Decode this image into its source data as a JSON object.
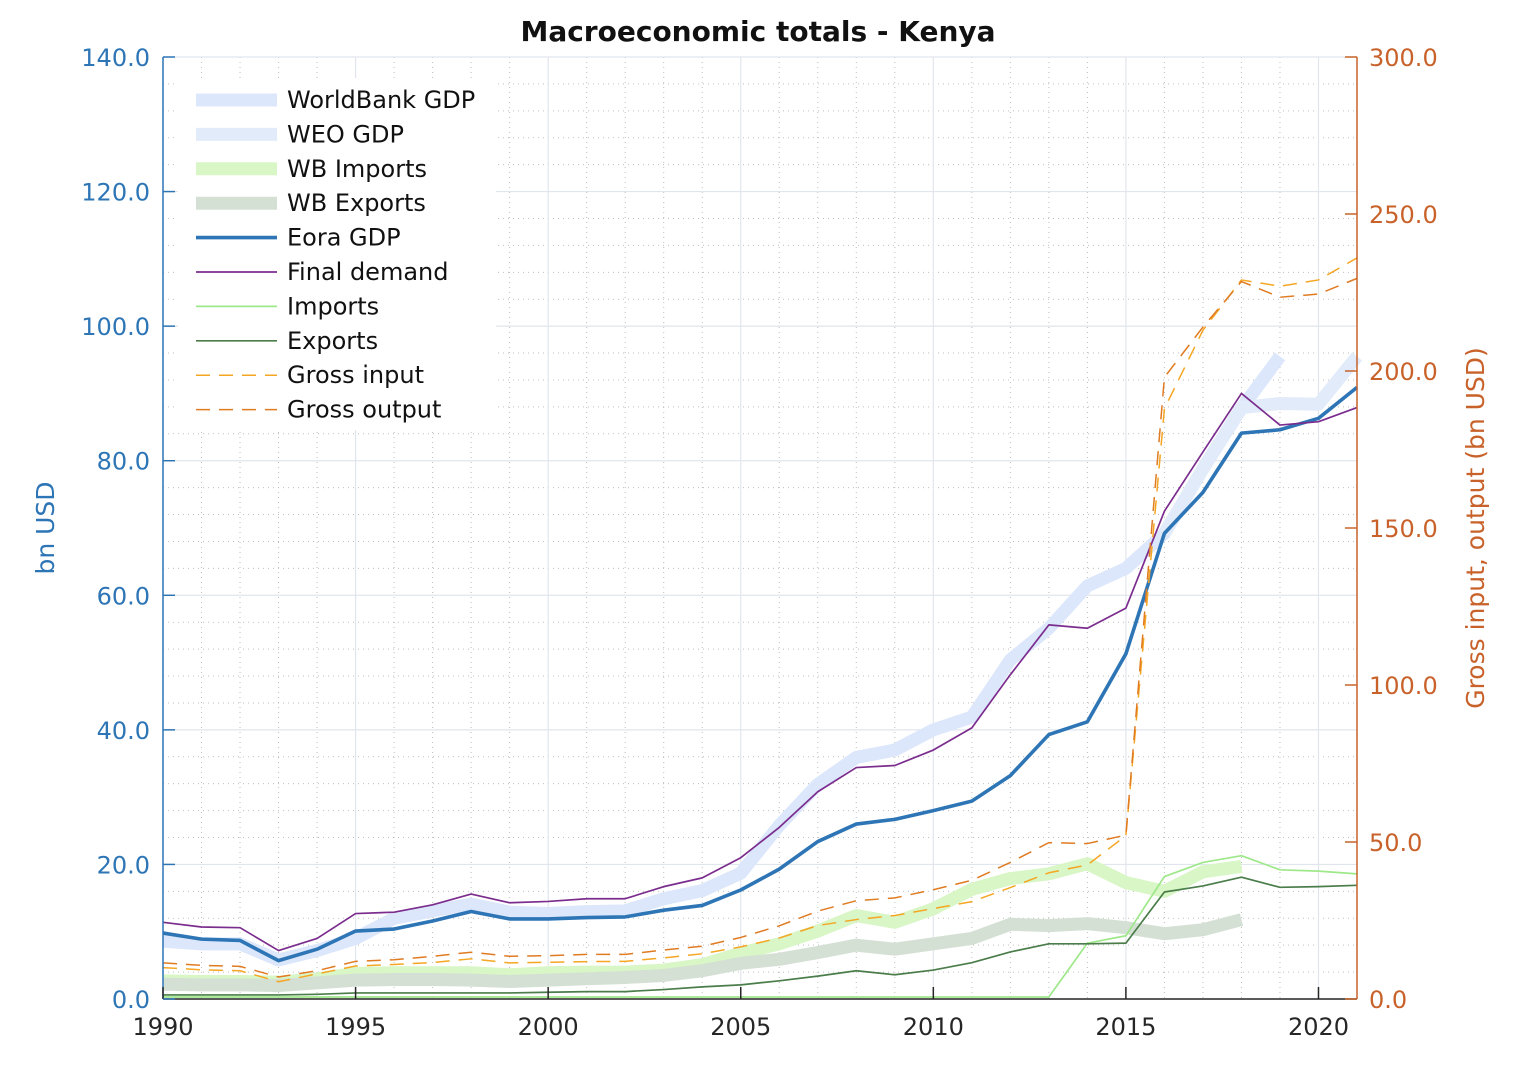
{
  "chart_data": {
    "type": "line",
    "title": "Macroeconomic totals - Kenya",
    "ylabel_left": "bn USD",
    "ylabel_right": "Gross input, output (bn USD)",
    "xlim": [
      1990,
      2021
    ],
    "ylim_left": [
      0,
      140
    ],
    "ylim_right": [
      0,
      300
    ],
    "x_ticks": [
      "1990",
      "1995",
      "2000",
      "2005",
      "2010",
      "2015",
      "2020"
    ],
    "y_ticks_left": [
      "0.0",
      "20.0",
      "40.0",
      "60.0",
      "80.0",
      "100.0",
      "120.0",
      "140.0"
    ],
    "y_ticks_right": [
      "0.0",
      "50.0",
      "100.0",
      "150.0",
      "200.0",
      "250.0",
      "300.0"
    ],
    "grid": true,
    "legend_position": "top-left",
    "colors": {
      "left_axis": "#2e75b6",
      "right_axis": "#c8622a"
    },
    "series": [
      {
        "name": "WorldBank GDP",
        "axis": "left",
        "color": "#dce7fb",
        "style": "thick",
        "x": [
          1990,
          1991,
          1992,
          1993,
          1994,
          1995,
          1996,
          1997,
          1998,
          1999,
          2000,
          2001,
          2002,
          2003,
          2004,
          2005,
          2006,
          2007,
          2008,
          2009,
          2010,
          2011,
          2012,
          2013,
          2014,
          2015,
          2016,
          2017,
          2018,
          2019
        ],
        "y": [
          8.6,
          8.2,
          8.2,
          5.8,
          7.2,
          9.0,
          12.0,
          13.1,
          14.1,
          12.9,
          12.7,
          12.99,
          13.1,
          14.9,
          16.1,
          18.7,
          25.8,
          31.9,
          35.9,
          37.0,
          40.0,
          41.9,
          50.4,
          55.1,
          61.4,
          64.0,
          69.2,
          78.8,
          87.8,
          95.5
        ]
      },
      {
        "name": "WEO GDP",
        "axis": "left",
        "color": "#e2ebfa",
        "style": "thick",
        "x": [
          2016,
          2017,
          2018,
          2019,
          2020,
          2021
        ],
        "y": [
          69.2,
          78.8,
          87.9,
          88.5,
          88.4,
          95.5
        ]
      },
      {
        "name": "WB Imports",
        "axis": "left",
        "color": "#d8f6c6",
        "style": "thick",
        "x": [
          1990,
          1991,
          1992,
          1993,
          1994,
          1995,
          1996,
          1997,
          1998,
          1999,
          2000,
          2001,
          2002,
          2003,
          2004,
          2005,
          2006,
          2007,
          2008,
          2009,
          2010,
          2011,
          2012,
          2013,
          2014,
          2015,
          2016,
          2017,
          2018
        ],
        "y": [
          2.7,
          2.6,
          2.6,
          2.5,
          3.0,
          3.8,
          3.9,
          3.9,
          3.9,
          3.6,
          3.9,
          4.0,
          4.0,
          4.3,
          5.1,
          6.8,
          8.2,
          10.1,
          12.4,
          11.4,
          13.4,
          16.3,
          17.9,
          18.6,
          20.1,
          17.3,
          16.0,
          18.9,
          19.7
        ]
      },
      {
        "name": "WB Exports",
        "axis": "left",
        "color": "#d5e0d5",
        "style": "thick",
        "x": [
          1990,
          1991,
          1992,
          1993,
          1994,
          1995,
          1996,
          1997,
          1998,
          1999,
          2000,
          2001,
          2002,
          2003,
          2004,
          2005,
          2006,
          2007,
          2008,
          2009,
          2010,
          2011,
          2012,
          2013,
          2014,
          2015,
          2016,
          2017,
          2018
        ],
        "y": [
          2.2,
          2.1,
          2.1,
          2.0,
          2.4,
          2.8,
          2.9,
          2.9,
          2.8,
          2.6,
          2.8,
          3.0,
          3.2,
          3.5,
          4.2,
          5.3,
          5.9,
          6.9,
          8.0,
          7.4,
          8.2,
          9.0,
          11.1,
          10.9,
          11.2,
          10.6,
          9.7,
          10.3,
          11.8
        ]
      },
      {
        "name": "Eora GDP",
        "axis": "left",
        "color": "#2e75b6",
        "style": "solid-bold",
        "x": [
          1990,
          1991,
          1992,
          1993,
          1994,
          1995,
          1996,
          1997,
          1998,
          1999,
          2000,
          2001,
          2002,
          2003,
          2004,
          2005,
          2006,
          2007,
          2008,
          2009,
          2010,
          2011,
          2012,
          2013,
          2014,
          2015,
          2016,
          2017,
          2018,
          2019,
          2020,
          2021
        ],
        "y": [
          9.8,
          8.9,
          8.7,
          5.7,
          7.4,
          10.1,
          10.4,
          11.6,
          13.0,
          11.9,
          11.9,
          12.1,
          12.2,
          13.2,
          13.9,
          16.2,
          19.3,
          23.4,
          26.0,
          26.7,
          28.0,
          29.4,
          33.2,
          39.3,
          41.2,
          51.3,
          69.2,
          75.3,
          84.1,
          84.6,
          86.3,
          90.9
        ]
      },
      {
        "name": "Final demand",
        "axis": "left",
        "color": "#7b2d8e",
        "style": "solid-thin",
        "x": [
          1990,
          1991,
          1992,
          1993,
          1994,
          1995,
          1996,
          1997,
          1998,
          1999,
          2000,
          2001,
          2002,
          2003,
          2004,
          2005,
          2006,
          2007,
          2008,
          2009,
          2010,
          2011,
          2012,
          2013,
          2014,
          2015,
          2016,
          2017,
          2018,
          2019,
          2020,
          2021
        ],
        "y": [
          11.4,
          10.7,
          10.6,
          7.2,
          9.0,
          12.7,
          12.9,
          14.0,
          15.6,
          14.3,
          14.5,
          14.9,
          14.9,
          16.7,
          18.0,
          21.0,
          25.5,
          30.8,
          34.4,
          34.7,
          37.0,
          40.3,
          48.2,
          55.6,
          55.1,
          58.1,
          72.5,
          81.3,
          90.0,
          85.3,
          85.8,
          87.9
        ]
      },
      {
        "name": "Imports",
        "axis": "left",
        "color": "#9ee88a",
        "style": "solid-thin",
        "x": [
          1990,
          1991,
          1992,
          1993,
          1994,
          1995,
          1996,
          1997,
          1998,
          1999,
          2000,
          2001,
          2002,
          2003,
          2004,
          2005,
          2006,
          2007,
          2008,
          2009,
          2010,
          2011,
          2012,
          2013,
          2014,
          2015,
          2016,
          2017,
          2018,
          2019,
          2020,
          2021
        ],
        "y": [
          0.3,
          0.3,
          0.3,
          0.3,
          0.3,
          0.3,
          0.3,
          0.3,
          0.3,
          0.3,
          0.3,
          0.3,
          0.3,
          0.3,
          0.3,
          0.3,
          0.3,
          0.3,
          0.3,
          0.3,
          0.3,
          0.3,
          0.3,
          0.3,
          8.3,
          9.4,
          18.2,
          20.3,
          21.3,
          19.2,
          19.0,
          18.6
        ]
      },
      {
        "name": "Exports",
        "axis": "left",
        "color": "#4a7d4a",
        "style": "solid-thin",
        "x": [
          1990,
          1991,
          1992,
          1993,
          1994,
          1995,
          1996,
          1997,
          1998,
          1999,
          2000,
          2001,
          2002,
          2003,
          2004,
          2005,
          2006,
          2007,
          2008,
          2009,
          2010,
          2011,
          2012,
          2013,
          2014,
          2015,
          2016,
          2017,
          2018,
          2019,
          2020,
          2021
        ],
        "y": [
          0.6,
          0.6,
          0.6,
          0.6,
          0.7,
          0.9,
          0.9,
          0.9,
          0.9,
          0.9,
          1.0,
          1.1,
          1.1,
          1.4,
          1.8,
          2.1,
          2.7,
          3.4,
          4.2,
          3.6,
          4.3,
          5.4,
          7.0,
          8.2,
          8.2,
          8.3,
          15.9,
          16.8,
          18.1,
          16.6,
          16.7,
          16.9
        ]
      },
      {
        "name": "Gross input",
        "axis": "right",
        "color": "#f5a623",
        "style": "dashed",
        "x": [
          1990,
          1991,
          1992,
          1993,
          1994,
          1995,
          1996,
          1997,
          1998,
          1999,
          2000,
          2001,
          2002,
          2003,
          2004,
          2005,
          2006,
          2007,
          2008,
          2009,
          2010,
          2011,
          2012,
          2013,
          2014,
          2015,
          2016,
          2017,
          2018,
          2019,
          2020,
          2021
        ],
        "y": [
          10.0,
          9.3,
          9.0,
          5.5,
          8.0,
          10.5,
          11.0,
          11.6,
          12.8,
          11.5,
          11.7,
          11.9,
          12.0,
          13.1,
          14.4,
          16.6,
          19.4,
          23.4,
          25.3,
          26.6,
          28.8,
          31.0,
          35.5,
          40.2,
          42.7,
          52.0,
          188.0,
          213.0,
          229.0,
          227.0,
          229.0,
          236.0
        ]
      },
      {
        "name": "Gross output",
        "axis": "right",
        "color": "#e07b22",
        "style": "dashed",
        "x": [
          1990,
          1991,
          1992,
          1993,
          1994,
          1995,
          1996,
          1997,
          1998,
          1999,
          2000,
          2001,
          2002,
          2003,
          2004,
          2005,
          2006,
          2007,
          2008,
          2009,
          2010,
          2011,
          2012,
          2013,
          2014,
          2015,
          2016,
          2017,
          2018,
          2019,
          2020,
          2021
        ],
        "y": [
          11.5,
          10.7,
          10.4,
          7.0,
          9.0,
          12.0,
          12.5,
          13.6,
          14.9,
          13.6,
          13.8,
          14.2,
          14.2,
          15.6,
          16.8,
          19.6,
          23.3,
          28.0,
          31.3,
          32.2,
          34.8,
          37.8,
          43.5,
          49.8,
          49.5,
          52.2,
          198.0,
          214.0,
          228.5,
          223.5,
          224.5,
          229.5
        ]
      }
    ]
  }
}
